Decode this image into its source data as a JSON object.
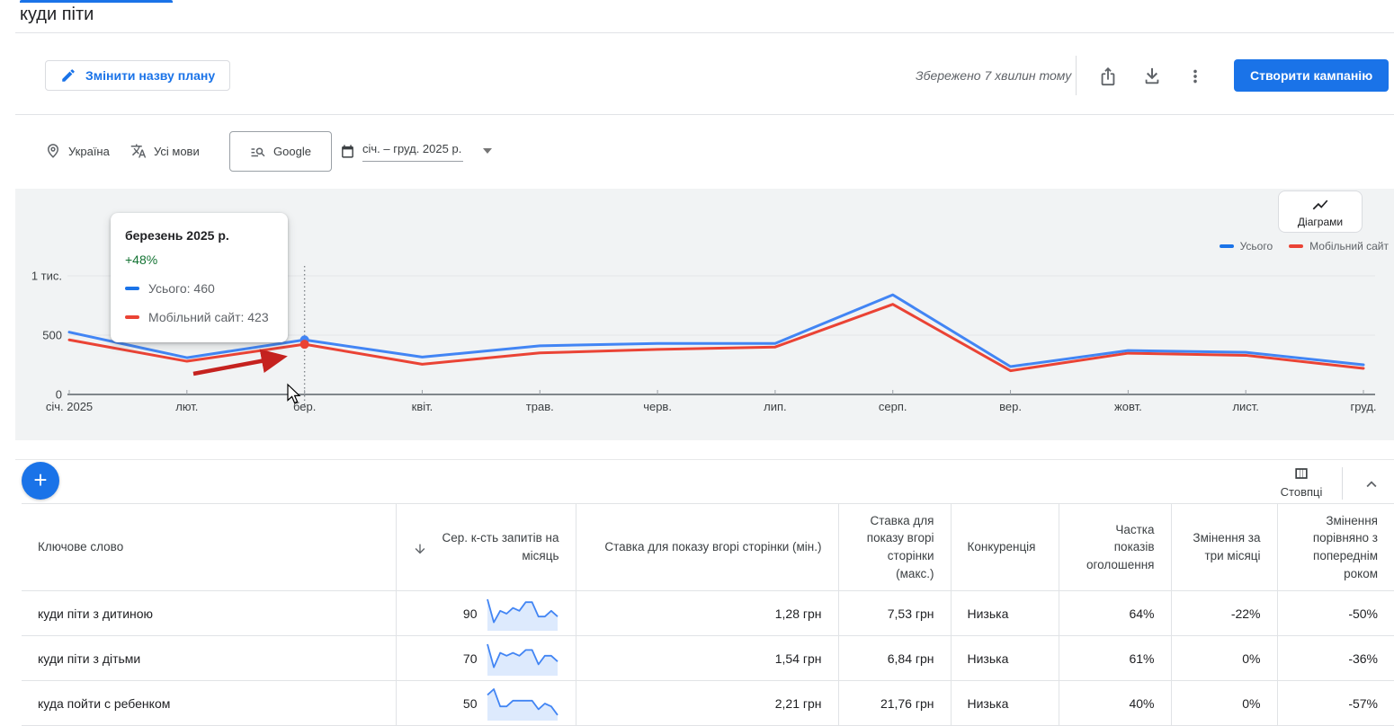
{
  "header": {
    "title": "куди піти"
  },
  "toolbar": {
    "rename_label": "Змінити назву плану",
    "saved_status": "Збережено 7 хвилин тому",
    "create_campaign_label": "Створити кампанію",
    "icons": [
      "share-icon",
      "download-icon",
      "more-vert-icon"
    ],
    "accent_color": "#1a73e8"
  },
  "filters": {
    "location": "Україна",
    "languages": "Усі мови",
    "network": "Google",
    "date_range": "січ. – груд. 2025 р."
  },
  "chart": {
    "charts_button_label": "Діаграми",
    "legend": [
      {
        "label": "Усього",
        "color": "#1a73e8"
      },
      {
        "label": "Мобільний сайт",
        "color": "#ea4335"
      }
    ],
    "tooltip": {
      "title": "березень 2025 р.",
      "change": "+48%",
      "change_color": "#137333",
      "items": [
        {
          "label": "Усього: 460",
          "color": "#1a73e8"
        },
        {
          "label": "Мобільний сайт: 423",
          "color": "#ea4335"
        }
      ]
    }
  },
  "chart_data": {
    "type": "line",
    "x": [
      "січ. 2025",
      "лют.",
      "бер.",
      "квіт.",
      "трав.",
      "черв.",
      "лип.",
      "серп.",
      "вер.",
      "жовт.",
      "лист.",
      "груд."
    ],
    "series": [
      {
        "name": "Усього",
        "color": "#4285f4",
        "values": [
          525,
          310,
          460,
          315,
          410,
          430,
          430,
          840,
          235,
          370,
          355,
          250
        ]
      },
      {
        "name": "Мобільний сайт",
        "color": "#ea4335",
        "values": [
          460,
          280,
          423,
          255,
          350,
          380,
          400,
          760,
          200,
          348,
          330,
          220
        ]
      }
    ],
    "ylim": [
      0,
      1000
    ],
    "y_ticks": [
      {
        "label": "1 тис.",
        "value": 1000
      },
      {
        "label": "500",
        "value": 500
      },
      {
        "label": "0",
        "value": 0
      }
    ],
    "grid": true,
    "legend_position": "top-right",
    "highlight": {
      "x_index": 2,
      "month": "березень 2025 р.",
      "change": "+48%",
      "Усього": 460,
      "Мобільний сайт": 423
    },
    "annotation": "red-arrow-pointing-to-march-point"
  },
  "table": {
    "columns_button_label": "Стовпці",
    "headers": [
      "Ключове слово",
      "Сер. к-сть запитів на місяць",
      "Ставка для показу вгорі сторінки (мін.)",
      "Ставка для показу вгорі сторінки (макс.)",
      "Конкуренція",
      "Частка показів оголошення",
      "Змінення за три місяці",
      "Змінення порівняно з попереднім роком"
    ],
    "sorted_column": "Сер. к-сть запитів на місяць",
    "rows": [
      {
        "keyword": "куди піти з дитиною",
        "volume": "90",
        "spark": [
          10,
          2,
          6,
          5,
          7,
          6,
          9,
          9,
          4,
          4,
          6,
          4
        ],
        "bid_min": "1,28 грн",
        "bid_max": "7,53 грн",
        "competition": "Низька",
        "impression_share": "64%",
        "change_3m": "-22%",
        "change_yoy": "-50%"
      },
      {
        "keyword": "куди піти з дітьми",
        "volume": "70",
        "spark": [
          10,
          2,
          7,
          6,
          7,
          6,
          8,
          8,
          3,
          6,
          6,
          4
        ],
        "bid_min": "1,54 грн",
        "bid_max": "6,84 грн",
        "competition": "Низька",
        "impression_share": "61%",
        "change_3m": "0%",
        "change_yoy": "-36%"
      },
      {
        "keyword": "куда пойти с ребенком",
        "volume": "50",
        "spark": [
          8,
          10,
          4,
          4,
          6,
          6,
          6,
          6,
          3,
          5,
          4,
          1
        ],
        "bid_min": "2,21 грн",
        "bid_max": "21,76 грн",
        "competition": "Низька",
        "impression_share": "40%",
        "change_3m": "0%",
        "change_yoy": "-57%"
      }
    ]
  }
}
